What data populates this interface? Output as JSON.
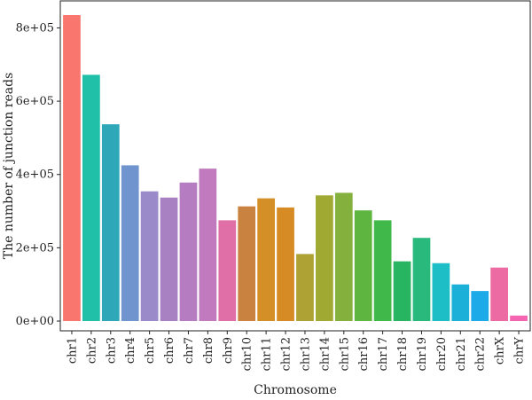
{
  "chart_data": {
    "type": "bar",
    "xlabel": "Chromosome",
    "ylabel": "The number of junction reads",
    "ylim": [
      0,
      870000
    ],
    "yticks": [
      0,
      200000,
      400000,
      600000,
      800000
    ],
    "ytick_labels": [
      "0e+00",
      "2e+05",
      "4e+05",
      "6e+05",
      "8e+05"
    ],
    "grid": false,
    "legend": "none",
    "categories": [
      "chr1",
      "chr2",
      "chr3",
      "chr4",
      "chr5",
      "chr6",
      "chr7",
      "chr8",
      "chr9",
      "chr10",
      "chr11",
      "chr12",
      "chr13",
      "chr14",
      "chr15",
      "chr16",
      "chr17",
      "chr18",
      "chr19",
      "chr20",
      "chr21",
      "chr22",
      "chrX",
      "chrY"
    ],
    "values": [
      835000,
      672000,
      537000,
      425000,
      354000,
      337000,
      378000,
      416000,
      275000,
      313000,
      335000,
      310000,
      183000,
      343000,
      350000,
      302000,
      275000,
      163000,
      227000,
      158000,
      100000,
      82000,
      146000,
      15000
    ],
    "colors": [
      "#F8766D",
      "#20BFA8",
      "#2EA7B9",
      "#7094CE",
      "#9A8ACA",
      "#A781C2",
      "#B57CC2",
      "#C17ABE",
      "#E06FA7",
      "#C9823F",
      "#D58F27",
      "#D68B24",
      "#AEA234",
      "#A0AA33",
      "#84B13E",
      "#5EB640",
      "#40B84A",
      "#28B561",
      "#29B97C",
      "#1DBEC6",
      "#1BB0D8",
      "#1DAAE8",
      "#ED6BA3",
      "#F564B0"
    ]
  }
}
